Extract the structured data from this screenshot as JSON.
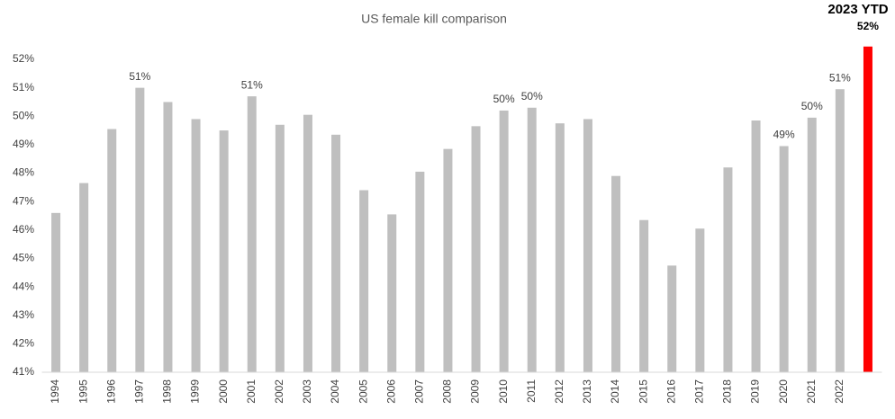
{
  "chart_data": {
    "type": "bar",
    "title": "US female kill comparison",
    "annotation": "2023 YTD",
    "categories": [
      "1994",
      "1995",
      "1996",
      "1997",
      "1998",
      "1999",
      "2000",
      "2001",
      "2002",
      "2003",
      "2004",
      "2005",
      "2006",
      "2007",
      "2008",
      "2009",
      "2010",
      "2011",
      "2012",
      "2013",
      "2014",
      "2015",
      "2016",
      "2017",
      "2018",
      "2019",
      "2020",
      "2021",
      "2022",
      null
    ],
    "values": [
      46.6,
      47.65,
      49.55,
      51.0,
      50.5,
      49.9,
      49.5,
      50.7,
      49.7,
      50.05,
      49.35,
      47.4,
      46.55,
      48.05,
      48.85,
      49.65,
      50.2,
      50.3,
      49.75,
      49.9,
      47.9,
      46.35,
      44.75,
      46.05,
      48.2,
      49.85,
      48.95,
      49.95,
      50.95,
      52.45
    ],
    "value_labels": [
      null,
      null,
      null,
      "51%",
      null,
      null,
      null,
      "51%",
      null,
      null,
      null,
      null,
      null,
      null,
      null,
      null,
      "50%",
      "50%",
      null,
      null,
      null,
      null,
      null,
      null,
      null,
      null,
      "49%",
      "50%",
      "51%",
      "52%"
    ],
    "colors": [
      "#bfbfbf",
      "#bfbfbf",
      "#bfbfbf",
      "#bfbfbf",
      "#bfbfbf",
      "#bfbfbf",
      "#bfbfbf",
      "#bfbfbf",
      "#bfbfbf",
      "#bfbfbf",
      "#bfbfbf",
      "#bfbfbf",
      "#bfbfbf",
      "#bfbfbf",
      "#bfbfbf",
      "#bfbfbf",
      "#bfbfbf",
      "#bfbfbf",
      "#bfbfbf",
      "#bfbfbf",
      "#bfbfbf",
      "#bfbfbf",
      "#bfbfbf",
      "#bfbfbf",
      "#bfbfbf",
      "#bfbfbf",
      "#bfbfbf",
      "#bfbfbf",
      "#bfbfbf",
      "#ff0000"
    ],
    "ylim": [
      41,
      52
    ],
    "yticks": [
      {
        "value": 41,
        "label": "41%"
      },
      {
        "value": 42,
        "label": "42%"
      },
      {
        "value": 43,
        "label": "43%"
      },
      {
        "value": 44,
        "label": "44%"
      },
      {
        "value": 45,
        "label": "45%"
      },
      {
        "value": 46,
        "label": "46%"
      },
      {
        "value": 47,
        "label": "47%"
      },
      {
        "value": 48,
        "label": "48%"
      },
      {
        "value": 49,
        "label": "49%"
      },
      {
        "value": 50,
        "label": "50%"
      },
      {
        "value": 51,
        "label": "51%"
      },
      {
        "value": 52,
        "label": "52%"
      }
    ],
    "grid": false
  }
}
